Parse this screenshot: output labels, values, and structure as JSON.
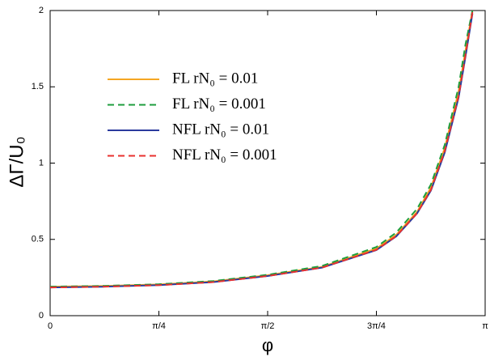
{
  "chart_data": {
    "type": "line",
    "ylabel": "ΔΓ/U₀",
    "xlabel": "φ",
    "x": [
      0,
      0.3927,
      0.7854,
      1.1781,
      1.5708,
      1.9635,
      2.3562,
      2.5,
      2.65,
      2.75,
      2.85,
      2.95,
      3.0,
      3.05
    ],
    "series": [
      {
        "name": "FL rN₀ = 0.01",
        "color": "#f5a623",
        "dash": false,
        "values": [
          0.19,
          0.195,
          0.205,
          0.225,
          0.265,
          0.32,
          0.44,
          0.53,
          0.68,
          0.84,
          1.1,
          1.47,
          1.74,
          2.0
        ]
      },
      {
        "name": "FL rN₀ = 0.001",
        "color": "#1e9e3e",
        "dash": true,
        "values": [
          0.19,
          0.195,
          0.206,
          0.227,
          0.268,
          0.326,
          0.45,
          0.545,
          0.7,
          0.86,
          1.12,
          1.5,
          1.78,
          2.0
        ]
      },
      {
        "name": "NFL rN₀ = 0.01",
        "color": "#2b3a9e",
        "dash": false,
        "values": [
          0.185,
          0.19,
          0.2,
          0.22,
          0.26,
          0.315,
          0.43,
          0.52,
          0.67,
          0.82,
          1.07,
          1.43,
          1.7,
          1.98
        ]
      },
      {
        "name": "NFL rN₀ = 0.001",
        "color": "#e8312e",
        "dash": true,
        "values": [
          0.185,
          0.19,
          0.2,
          0.22,
          0.26,
          0.315,
          0.432,
          0.522,
          0.672,
          0.825,
          1.08,
          1.44,
          1.71,
          1.99
        ]
      }
    ],
    "xlim": [
      0,
      3.1416
    ],
    "xticks": [
      0,
      {
        "value": 0.7854,
        "label": "π/4"
      },
      {
        "value": 1.5708,
        "label": "π/2"
      },
      {
        "value": 2.3562,
        "label": "3π/4"
      },
      {
        "value": 3.1416,
        "label": "π"
      }
    ],
    "ylim": [
      0,
      2
    ],
    "yticks": [
      0,
      0.5,
      1,
      1.5,
      2
    ]
  }
}
